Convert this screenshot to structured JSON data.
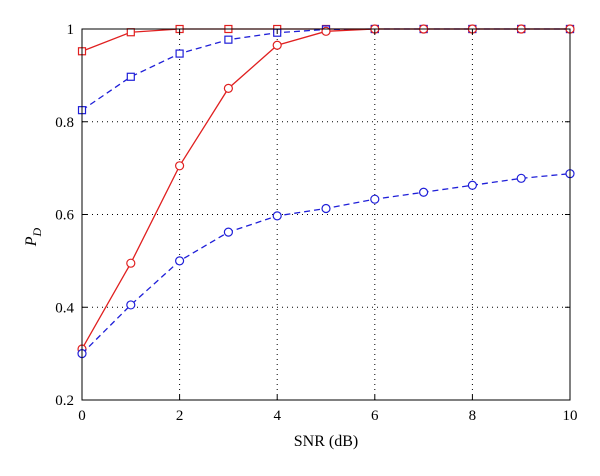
{
  "chart_data": {
    "type": "line",
    "title": "",
    "xlabel": "SNR (dB)",
    "ylabel": "P",
    "ylabel_subscript": "D",
    "xlim": [
      0,
      10
    ],
    "ylim": [
      0.2,
      1
    ],
    "xticks": [
      "0",
      "2",
      "4",
      "6",
      "8",
      "10"
    ],
    "yticks": [
      "0.2",
      "0.4",
      "0.6",
      "0.8",
      "1"
    ],
    "grid": true,
    "x": [
      0,
      1,
      2,
      3,
      4,
      5,
      6,
      7,
      8,
      9,
      10
    ],
    "series": [
      {
        "color": "#e02020",
        "line": "solid",
        "marker": "square",
        "values": [
          0.952,
          0.993,
          1.0,
          1.0,
          1.0,
          1.0,
          1.0,
          1.0,
          1.0,
          1.0,
          1.0
        ]
      },
      {
        "color": "#1f1fd8",
        "line": "dashed",
        "marker": "square",
        "values": [
          0.825,
          0.897,
          0.947,
          0.977,
          0.992,
          0.999,
          1.0,
          1.0,
          1.0,
          1.0,
          1.0
        ]
      },
      {
        "color": "#e02020",
        "line": "solid",
        "marker": "circle",
        "values": [
          0.31,
          0.495,
          0.705,
          0.872,
          0.965,
          0.995,
          1.0,
          1.0,
          1.0,
          1.0,
          1.0
        ]
      },
      {
        "color": "#1f1fd8",
        "line": "dashed",
        "marker": "circle",
        "values": [
          0.3,
          0.405,
          0.5,
          0.562,
          0.597,
          0.613,
          0.633,
          0.648,
          0.663,
          0.678,
          0.688
        ]
      }
    ]
  }
}
